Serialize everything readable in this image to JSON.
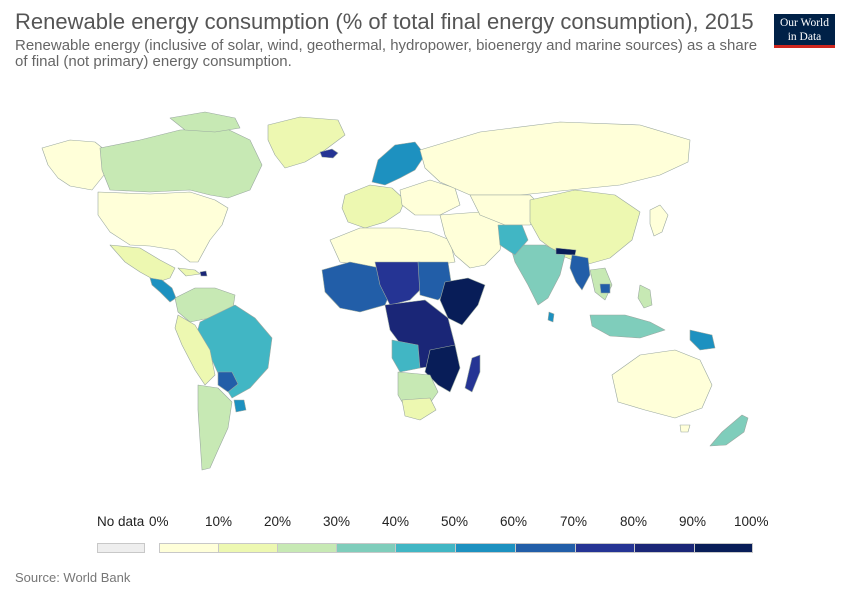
{
  "title": "Renewable energy consumption (% of total final energy consumption), 2015",
  "subtitle": "Renewable energy (inclusive of solar, wind, geothermal, hydropower, bioenergy and marine sources) as a share of final (not primary) energy consumption.",
  "logo": {
    "line1": "Our World",
    "line2": "in Data"
  },
  "legend": {
    "no_data_label": "No data",
    "no_data_color": "#eeeeee",
    "ticks": [
      "0%",
      "10%",
      "20%",
      "30%",
      "40%",
      "50%",
      "60%",
      "70%",
      "80%",
      "90%",
      "100%"
    ],
    "bins": [
      "#ffffd9",
      "#edf8b1",
      "#c7e9b4",
      "#7fcdbb",
      "#41b6c4",
      "#1d91c0",
      "#225ea8",
      "#253494",
      "#1a2677",
      "#081d58"
    ]
  },
  "source": "Source: World Bank"
}
